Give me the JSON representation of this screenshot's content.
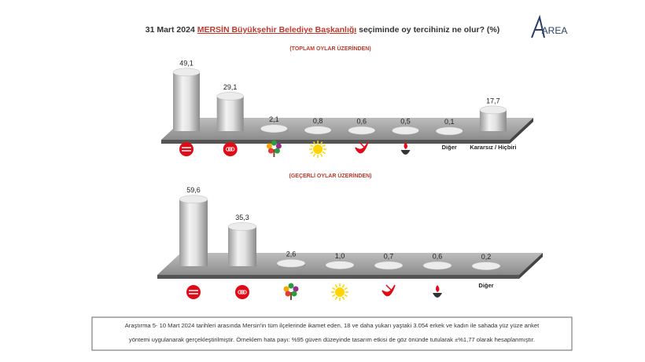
{
  "title_parts": [
    "31 Mart 2024 ",
    "MERSİN Büyükşehir Belediye Başkanlığı",
    " seçiminde oy tercihiniz ne olur? (%)"
  ],
  "logo": "AREA",
  "chart_data": [
    {
      "type": "bar",
      "subtitle": "(TOPLAM OYLAR ÜZERİNDEN)",
      "categories": [
        null,
        null,
        null,
        null,
        null,
        null,
        "Diğer",
        "Kararsız / Hiçbiri"
      ],
      "values": [
        49.1,
        29.1,
        2.1,
        0.8,
        0.6,
        0.5,
        0.1,
        17.7
      ],
      "value_labels": [
        "49,1",
        "29,1",
        "2,1",
        "0,8",
        "0,6",
        "0,5",
        "0,1",
        "17,7"
      ]
    },
    {
      "type": "bar",
      "subtitle": "(GEÇERLİ OYLAR ÜZERİNDEN)",
      "categories": [
        null,
        null,
        null,
        null,
        null,
        null,
        "Diğer"
      ],
      "values": [
        59.6,
        35.3,
        2.6,
        1.0,
        0.7,
        0.6,
        0.2
      ],
      "value_labels": [
        "59,6",
        "35,3",
        "2,6",
        "1,0",
        "0,7",
        "0,6",
        "0,2"
      ]
    }
  ],
  "footnote": [
    "Araştırma 5- 10 Mart 2024 tarihleri arasında Mersin'in tüm ilçelerinde ikamet eden, 18 ve daha yukarı yaştaki 3.054 erkek ve kadın ile sahada yüz yüze anket",
    "yöntemi uygulanarak gerçekleştirilmiştir. Örneklem hata payı: %95 güven düzeyinde tasarım etkisi de göz önünde tutularak ±%1,77 olarak hesaplanmıştır."
  ]
}
